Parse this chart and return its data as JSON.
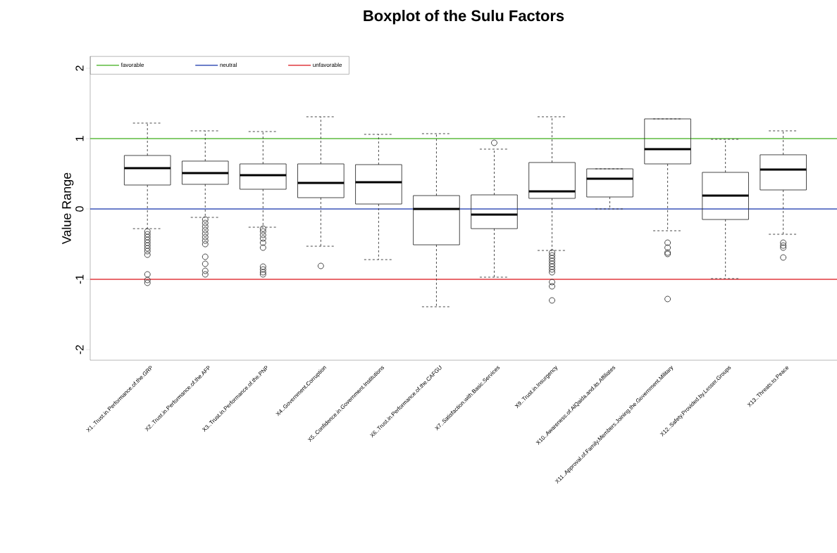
{
  "chart_data": {
    "type": "box",
    "title": "Boxplot of the Sulu Factors",
    "ylabel": "Value Range",
    "categories": [
      "X1..Trust.in.Performance.of.the.GRP",
      "X2..Trust.in.Performance.of.the.AFP",
      "X3..Trust.in.Performance.of.the.PNP",
      "X4..Government.Corruption",
      "X5..Confidence.in.Government.Institutions",
      "X6..Trust.in.Performance.of.the.CAFGU",
      "X7..Satisfaction.with.Basic.Services",
      "X9..Trust.in.Insurgency",
      "X10..Awareness.of.AlQaida.and.its.Affiliates",
      "X11..Approval.of.Family.Members.Joining.the.Government.Military",
      "X12..Safety.Provided.by.Lesser.Groups",
      "X13..Threats.to.Peace"
    ],
    "boxes": [
      {
        "low": -0.28,
        "q1": 0.34,
        "median": 0.58,
        "q3": 0.76,
        "high": 1.22,
        "outliers": [
          -0.32,
          -0.36,
          -0.4,
          -0.44,
          -0.48,
          -0.52,
          -0.56,
          -0.6,
          -0.65,
          -0.93,
          -1.01,
          -1.05
        ]
      },
      {
        "low": -0.12,
        "q1": 0.35,
        "median": 0.51,
        "q3": 0.68,
        "high": 1.11,
        "outliers": [
          -0.15,
          -0.2,
          -0.25,
          -0.3,
          -0.35,
          -0.4,
          -0.45,
          -0.5,
          -0.68,
          -0.78,
          -0.88,
          -0.93
        ]
      },
      {
        "low": -0.26,
        "q1": 0.28,
        "median": 0.48,
        "q3": 0.64,
        "high": 1.1,
        "outliers": [
          -0.28,
          -0.32,
          -0.37,
          -0.42,
          -0.48,
          -0.55,
          -0.82,
          -0.86,
          -0.9,
          -0.93
        ]
      },
      {
        "low": -0.53,
        "q1": 0.16,
        "median": 0.37,
        "q3": 0.64,
        "high": 1.31,
        "outliers": [
          -0.81
        ]
      },
      {
        "low": -0.72,
        "q1": 0.07,
        "median": 0.38,
        "q3": 0.63,
        "high": 1.06
      },
      {
        "low": -1.39,
        "q1": -0.51,
        "median": 0.0,
        "q3": 0.19,
        "high": 1.07
      },
      {
        "low": -0.97,
        "q1": -0.28,
        "median": -0.08,
        "q3": 0.2,
        "high": 0.85,
        "outliers": [
          0.94
        ]
      },
      {
        "low": -0.59,
        "q1": 0.15,
        "median": 0.25,
        "q3": 0.66,
        "high": 1.31,
        "outliers": [
          -0.62,
          -0.66,
          -0.7,
          -0.74,
          -0.78,
          -0.82,
          -0.86,
          -0.9,
          -1.04,
          -1.1,
          -1.3
        ]
      },
      {
        "low": 0.0,
        "q1": 0.17,
        "median": 0.43,
        "q3": 0.57,
        "high": 0.57
      },
      {
        "low": -0.31,
        "q1": 0.64,
        "median": 0.85,
        "q3": 1.28,
        "high": 1.28,
        "outliers": [
          -0.48,
          -0.55,
          -0.62,
          -0.64,
          -1.28
        ]
      },
      {
        "low": -0.99,
        "q1": -0.15,
        "median": 0.19,
        "q3": 0.52,
        "high": 0.99
      },
      {
        "low": -0.36,
        "q1": 0.27,
        "median": 0.56,
        "q3": 0.77,
        "high": 1.11,
        "outliers": [
          -0.48,
          -0.52,
          -0.55,
          -0.69
        ]
      }
    ],
    "ylim": [
      -2.15,
      2.17
    ],
    "yticks": [
      -2,
      -1,
      0,
      1,
      2
    ],
    "ref_lines": [
      {
        "axis": "y",
        "value": 1,
        "label": "favorable",
        "color": "#5dbb3f"
      },
      {
        "axis": "y",
        "value": 0,
        "label": "neutral",
        "color": "#3b54b8"
      },
      {
        "axis": "y",
        "value": -1,
        "label": "unfavorable",
        "color": "#e0393e"
      }
    ],
    "legend": "top left"
  }
}
